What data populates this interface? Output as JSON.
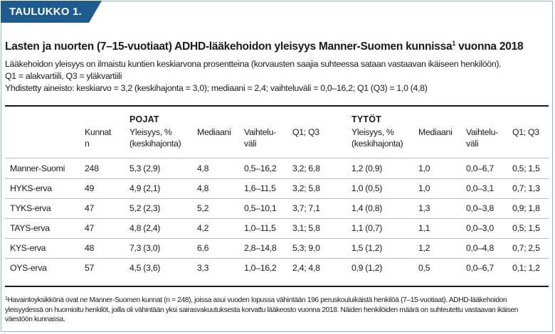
{
  "tab_label": "TAULUKKO 1.",
  "title": "Lasten ja nuorten (7–15-vuotiaat) ADHD-lääkehoidon yleisyys Manner-Suomen kunnissa",
  "title_sup": "1",
  "title_tail": " vuonna 2018",
  "description": [
    "Lääkehoidon yleisyys on ilmaistu kuntien keskiarvona prosentteina (korvausten saajia suhteessa sataan vastaavan ikäiseen henkilöön).",
    "Q1 = alakvartiili, Q3 = yläkvartiili",
    "Yhdistetty aineisto: keskiarvo = 3,2 (keskihajonta = 3,0); mediaani = 2,4; vaihteluväli = 0,0–16,2; Q1 (Q3) = 1,0 (4,8)"
  ],
  "groups": {
    "boys": "POJAT",
    "girls": "TYTÖT"
  },
  "headers": {
    "kunnat": [
      "Kunnat",
      "n"
    ],
    "yleisyys": [
      "Yleisyys, %",
      "(keskihajonta)"
    ],
    "mediaani": [
      "Mediaani"
    ],
    "vaihteluvali": [
      "Vaihtelu-",
      "väli"
    ],
    "q1q3": [
      "Q1; Q3"
    ]
  },
  "rows": [
    {
      "name": "Manner-Suomi",
      "n": "248",
      "b_yl": "5,3 (2,9)",
      "b_med": "4,8",
      "b_vv": "0,5–16,2",
      "b_q": "3,2; 6,8",
      "g_yl": "1,2 (0,9)",
      "g_med": "1,0",
      "g_vv": "0,0–6,7",
      "g_q": "0,5; 1,5"
    },
    {
      "name": "HYKS-erva",
      "n": "49",
      "b_yl": "4,9 (2,1)",
      "b_med": "4,8",
      "b_vv": "1,6–11,5",
      "b_q": "3,2; 5,8",
      "g_yl": "1,0 (0,5)",
      "g_med": "1,0",
      "g_vv": "0,0–3,1",
      "g_q": "0,7; 1,3"
    },
    {
      "name": "TYKS-erva",
      "n": "47",
      "b_yl": "5,2 (2,3)",
      "b_med": "5,2",
      "b_vv": "0,5–10,1",
      "b_q": "3,7; 7,1",
      "g_yl": "1,4 (0,8)",
      "g_med": "1,3",
      "g_vv": "0,0–3,8",
      "g_q": "0,9; 1,8"
    },
    {
      "name": "TAYS-erva",
      "n": "47",
      "b_yl": "4,8 (2,4)",
      "b_med": "4,2",
      "b_vv": "1,0–11,5",
      "b_q": "3,1; 5,8",
      "g_yl": "1,1 (0,7)",
      "g_med": "1,1",
      "g_vv": "0,0–3,0",
      "g_q": "0,5; 1,5"
    },
    {
      "name": "KYS-erva",
      "n": "48",
      "b_yl": "7,3 (3,0)",
      "b_med": "6,6",
      "b_vv": "2,8–14,8",
      "b_q": "5,3; 9,0",
      "g_yl": "1,5 (1,2)",
      "g_med": "1,2",
      "g_vv": "0,0–4,8",
      "g_q": "0,7; 2,5"
    },
    {
      "name": "OYS-erva",
      "n": "57",
      "b_yl": "4,5 (3,6)",
      "b_med": "3,3",
      "b_vv": "1,0–16,2",
      "b_q": "2,4; 4,8",
      "g_yl": "0,9 (1,2)",
      "g_med": "0,5",
      "g_vv": "0,0–6,7",
      "g_q": "0,1; 1,2"
    }
  ],
  "footnote": {
    "sup": "1",
    "lines": [
      "Havaintoyksikkönä ovat ne Manner-Suomen kunnat (n = 248), joissa asui vuoden lopussa vähintään 196 peruskouluikäistä henkilöä (7–15-vuotiaat). ADHD-lääkehoidon",
      "yleisyydessä on huomioitu henkilöt, joilla oli vähintään yksi sairasvakuutuksesta korvattu lääkeosto vuonna 2018. Näiden henkilöiden määrä on suhteutettu vastaavan ikäisen",
      "väestöön kunnassa."
    ]
  },
  "colors": {
    "accent": "#1e5b8e",
    "frame": "#8fb4d2"
  }
}
